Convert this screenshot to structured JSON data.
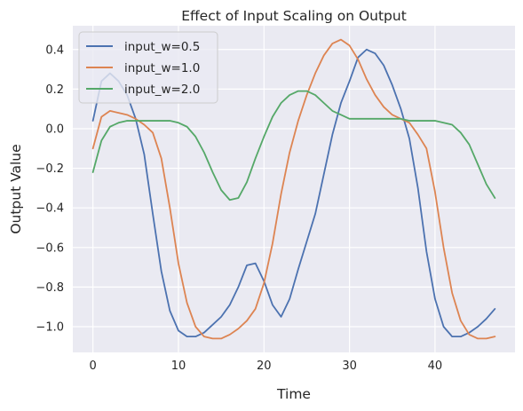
{
  "chart_data": {
    "type": "line",
    "title": "Effect of Input Scaling on Output",
    "xlabel": "Time",
    "ylabel": "Output Value",
    "xlim": [
      -2.35,
      49.35
    ],
    "ylim": [
      -1.13,
      0.52
    ],
    "xticks": [
      0,
      10,
      20,
      30,
      40
    ],
    "yticks": [
      -1.0,
      -0.8,
      -0.6,
      -0.4,
      -0.2,
      0.0,
      0.2,
      0.4
    ],
    "ytick_labels": [
      "−1.0",
      "−0.8",
      "−0.6",
      "−0.4",
      "−0.2",
      "0.0",
      "0.2",
      "0.4"
    ],
    "grid": true,
    "legend_position": "top-left",
    "x": [
      0,
      1,
      2,
      3,
      4,
      5,
      6,
      7,
      8,
      9,
      10,
      11,
      12,
      13,
      14,
      15,
      16,
      17,
      18,
      19,
      20,
      21,
      22,
      23,
      24,
      25,
      26,
      27,
      28,
      29,
      30,
      31,
      32,
      33,
      34,
      35,
      36,
      37,
      38,
      39,
      40,
      41,
      42,
      43,
      44,
      45,
      46,
      47
    ],
    "series": [
      {
        "name": "input_w=0.5",
        "color": "#4c72b0",
        "values": [
          0.04,
          0.24,
          0.28,
          0.24,
          0.17,
          0.05,
          -0.13,
          -0.43,
          -0.72,
          -0.92,
          -1.02,
          -1.05,
          -1.05,
          -1.03,
          -0.99,
          -0.95,
          -0.89,
          -0.8,
          -0.69,
          -0.68,
          -0.77,
          -0.89,
          -0.95,
          -0.86,
          -0.71,
          -0.57,
          -0.43,
          -0.23,
          -0.03,
          0.13,
          0.24,
          0.36,
          0.4,
          0.38,
          0.32,
          0.22,
          0.1,
          -0.05,
          -0.3,
          -0.62,
          -0.86,
          -1.0,
          -1.05,
          -1.05,
          -1.03,
          -1.0,
          -0.96,
          -0.91
        ]
      },
      {
        "name": "input_w=1.0",
        "color": "#dd8452",
        "values": [
          -0.1,
          0.06,
          0.09,
          0.08,
          0.07,
          0.05,
          0.02,
          -0.02,
          -0.15,
          -0.4,
          -0.68,
          -0.88,
          -1.0,
          -1.05,
          -1.06,
          -1.06,
          -1.04,
          -1.01,
          -0.97,
          -0.91,
          -0.78,
          -0.58,
          -0.33,
          -0.12,
          0.04,
          0.17,
          0.28,
          0.37,
          0.43,
          0.45,
          0.42,
          0.35,
          0.25,
          0.17,
          0.11,
          0.07,
          0.05,
          0.03,
          -0.03,
          -0.1,
          -0.32,
          -0.6,
          -0.83,
          -0.97,
          -1.04,
          -1.06,
          -1.06,
          -1.05
        ]
      },
      {
        "name": "input_w=2.0",
        "color": "#55a868",
        "values": [
          -0.22,
          -0.06,
          0.01,
          0.03,
          0.04,
          0.04,
          0.04,
          0.04,
          0.04,
          0.04,
          0.03,
          0.01,
          -0.04,
          -0.12,
          -0.22,
          -0.31,
          -0.36,
          -0.35,
          -0.27,
          -0.15,
          -0.04,
          0.06,
          0.13,
          0.17,
          0.19,
          0.19,
          0.17,
          0.13,
          0.09,
          0.07,
          0.05,
          0.05,
          0.05,
          0.05,
          0.05,
          0.05,
          0.05,
          0.04,
          0.04,
          0.04,
          0.04,
          0.03,
          0.02,
          -0.02,
          -0.08,
          -0.18,
          -0.28,
          -0.35
        ]
      }
    ]
  }
}
